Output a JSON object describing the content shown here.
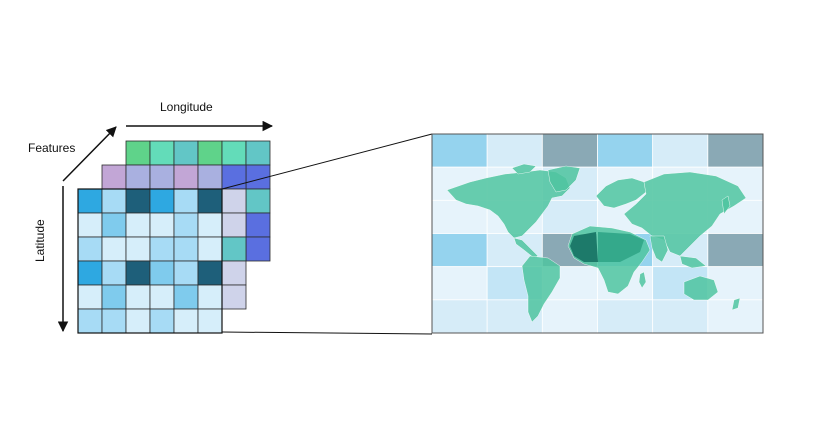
{
  "labels": {
    "longitude": "Longitude",
    "features": "Features",
    "latitude": "Latitude"
  },
  "colors": {
    "back_layer": [
      "#5fd38a",
      "#63dcb9",
      "#62c6c6",
      "#5fd38a",
      "#63dcb9",
      "#62c6c6"
    ],
    "mid_layer": [
      "#c2a6d6",
      "#a9b0e0",
      "#a9b0e0",
      "#c2a6d6",
      "#a9b0e0",
      "#5a6fe0"
    ],
    "front_layer": [
      [
        "#2ea8e1",
        "#a7dbf5",
        "#1e5f7a",
        "#2ea8e1",
        "#a7dbf5",
        "#1e5f7a"
      ],
      [
        "#d6eefa",
        "#7fcbed",
        "#d6eefa",
        "#d6eefa",
        "#a7dbf5",
        "#d6eefa"
      ],
      [
        "#a7dbf5",
        "#d6eefa",
        "#d6eefa",
        "#a7dbf5",
        "#a7dbf5",
        "#d6eefa"
      ],
      [
        "#2ea8e1",
        "#a7dbf5",
        "#1e5f7a",
        "#7fcbed",
        "#a7dbf5",
        "#1e5f7a"
      ],
      [
        "#d6eefa",
        "#7fcbed",
        "#d6eefa",
        "#d6eefa",
        "#7fcbed",
        "#d6eefa"
      ],
      [
        "#a7dbf5",
        "#a7dbf5",
        "#d6eefa",
        "#a7dbf5",
        "#d6eefa",
        "#d6eefa"
      ]
    ],
    "mid_right_column": [
      "#cfd3ea",
      "#cfd3ea",
      "#62c6c6",
      "#cfd3ea",
      "#cfd3ea"
    ],
    "back_right_column": [
      "#5a6fe0",
      "#62c6c6",
      "#5a6fe0",
      "#5a6fe0"
    ],
    "map_grid": [
      [
        "#95d3ee",
        "#d6ecf8",
        "#8aa9b5",
        "#95d3ee",
        "#d6ecf8",
        "#8aa9b5"
      ],
      [
        "#e6f3fb",
        "#e6f3fb",
        "#d6ecf8",
        "#e6f3fb",
        "#e6f3fb",
        "#e6f3fb"
      ],
      [
        "#e6f3fb",
        "#e6f3fb",
        "#d6ecf8",
        "#e6f3fb",
        "#e6f3fb",
        "#e6f3fb"
      ],
      [
        "#95d3ee",
        "#d6ecf8",
        "#8aa9b5",
        "#95d3ee",
        "#d6ecf8",
        "#8aa9b5"
      ],
      [
        "#e6f3fb",
        "#c3e5f6",
        "#e6f3fb",
        "#e6f3fb",
        "#c3e5f6",
        "#e6f3fb"
      ],
      [
        "#d6ecf8",
        "#d6ecf8",
        "#e6f3fb",
        "#d6ecf8",
        "#d6ecf8",
        "#e6f3fb"
      ]
    ],
    "land": "#4fc4a0",
    "land_dark": "#1d7a6a",
    "land_mid": "#34a98b",
    "grid_line": "#ffffff",
    "stroke": "#111111"
  }
}
